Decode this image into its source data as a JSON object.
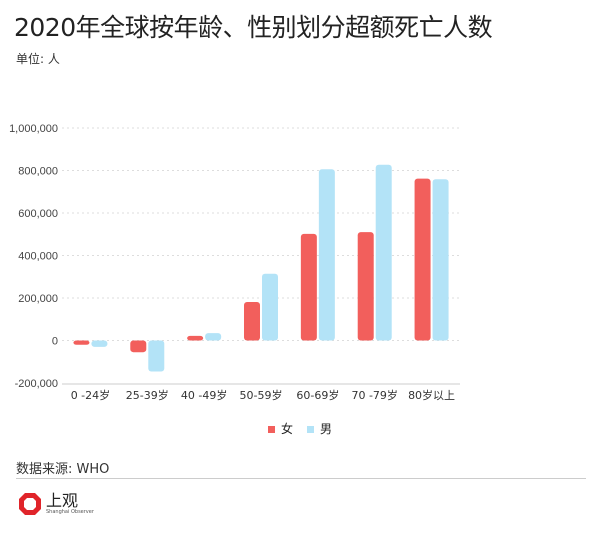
{
  "header": {
    "title": "2020年全球按年龄、性别划分超额死亡人数",
    "unit": "单位: 人"
  },
  "footer": {
    "source": "数据来源: WHO",
    "logo_text": "上观",
    "logo_sub": "Shanghai Observer"
  },
  "chart_data": {
    "type": "bar",
    "title": "2020年全球按年龄、性别划分超额死亡人数",
    "ylabel": "单位: 人",
    "xlabel": "",
    "categories": [
      "0 -24岁",
      "25-39岁",
      "40 -49岁",
      "50-59岁",
      "60-69岁",
      "70 -79岁",
      "80岁以上"
    ],
    "series": [
      {
        "name": "女",
        "color": "#f25f5c",
        "values": [
          -20000,
          -55000,
          22000,
          181000,
          502000,
          510000,
          762000
        ]
      },
      {
        "name": "男",
        "color": "#b3e3f7",
        "values": [
          -30000,
          -146000,
          35000,
          314000,
          806000,
          827000,
          759000
        ]
      }
    ],
    "ylim": [
      -200000,
      1000000
    ],
    "yticks": [
      -200000,
      0,
      200000,
      400000,
      600000,
      800000,
      1000000
    ],
    "ytick_labels": [
      "-200,000",
      "0",
      "200,000",
      "400,000",
      "600,000",
      "800,000",
      "1,000,000"
    ],
    "grid": true,
    "legend": "bottom-center"
  }
}
